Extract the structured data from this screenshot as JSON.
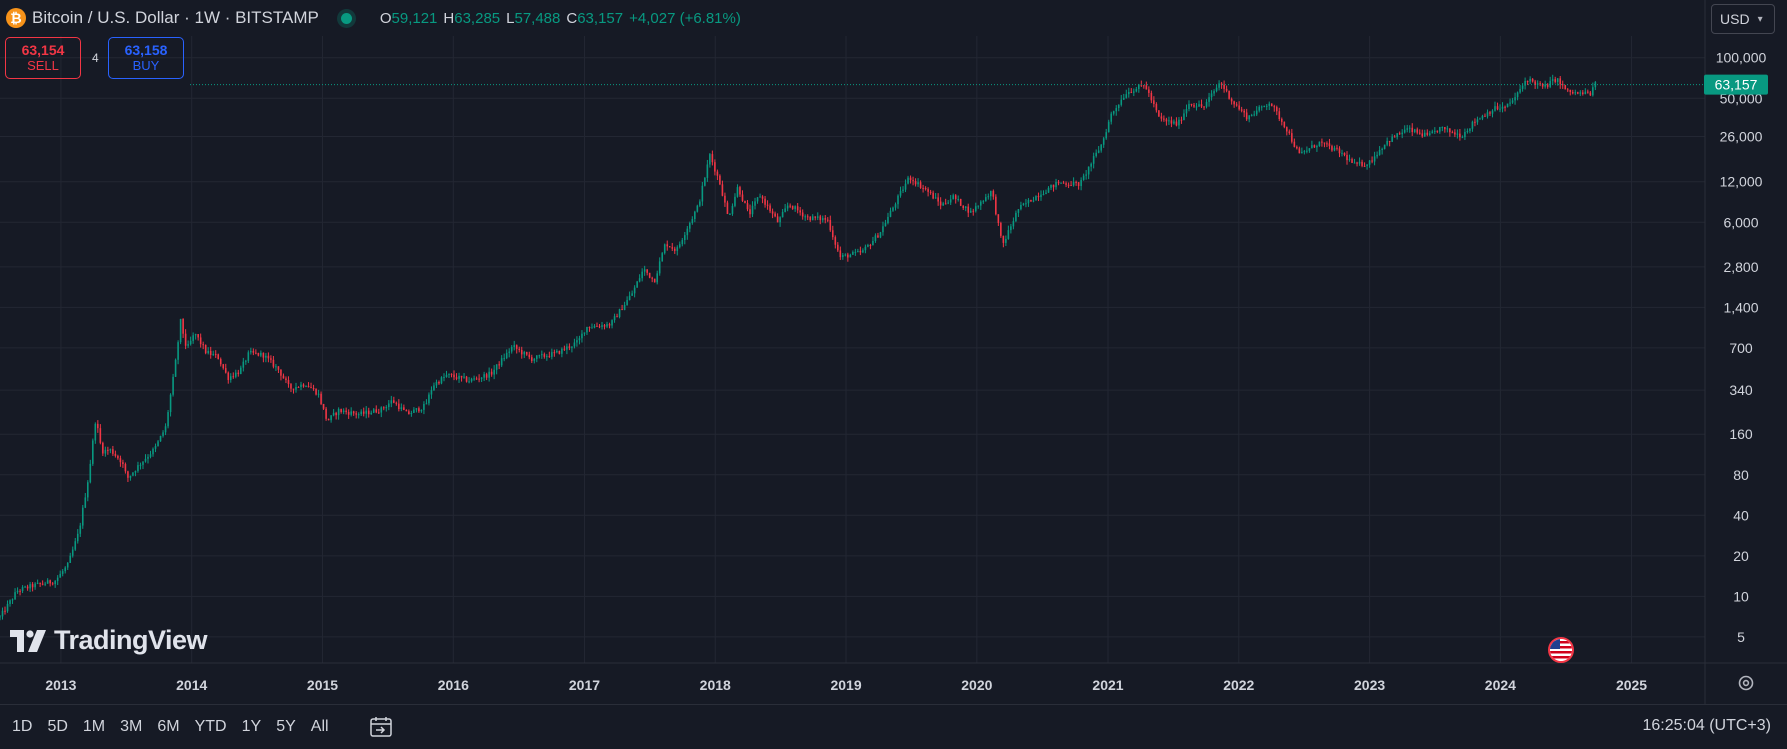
{
  "header": {
    "symbol_title": "Bitcoin / U.S. Dollar · 1W · BITSTAMP",
    "logo_glyph": "₿",
    "ohlc": {
      "o_label": "O",
      "o_value": "59,121",
      "h_label": "H",
      "h_value": "63,285",
      "l_label": "L",
      "l_value": "57,488",
      "c_label": "C",
      "c_value": "63,157",
      "change": "+4,027 (+6.81%)"
    }
  },
  "trade": {
    "sell_price": "63,154",
    "sell_label": "SELL",
    "spread": "4",
    "buy_price": "63,158",
    "buy_label": "BUY"
  },
  "currency": {
    "value": "USD"
  },
  "watermark": {
    "text": "TradingView"
  },
  "bottom_bar": {
    "ranges": [
      "1D",
      "5D",
      "1M",
      "3M",
      "6M",
      "YTD",
      "1Y",
      "5Y",
      "All"
    ],
    "clock": "16:25:04 (UTC+3)"
  },
  "colors": {
    "background": "#161a25",
    "grid": "#232733",
    "up": "#089981",
    "down": "#f23645",
    "text": "#d1d4dc",
    "price_tag": "#089981"
  },
  "icons": {
    "logo": "bitcoin-icon",
    "calendar": "calendar-goto-icon",
    "settings": "gear-icon",
    "badge": "us-flag-icon"
  },
  "chart_data": {
    "type": "candlestick",
    "scale": "log",
    "grid": true,
    "ylim": [
      3.2,
      145000
    ],
    "y_ticks": [
      5,
      10,
      20,
      40,
      80,
      160,
      340,
      700,
      1400,
      2800,
      6000,
      12000,
      26000,
      50000,
      100000
    ],
    "y_tick_labels": [
      "5",
      "10",
      "20",
      "40",
      "80",
      "160",
      "340",
      "700",
      "1,400",
      "2,800",
      "6,000",
      "12,000",
      "26,000",
      "50,000",
      "100,000"
    ],
    "x_ticks": [
      "2013",
      "2014",
      "2015",
      "2016",
      "2017",
      "2018",
      "2019",
      "2020",
      "2021",
      "2022",
      "2023",
      "2024",
      "2025"
    ],
    "xlim": [
      "2012-07-15",
      "2025-07-25"
    ],
    "last_price": 63157,
    "last_price_label": "63,157",
    "series": [
      {
        "x": "2012-07-15",
        "close": 7
      },
      {
        "x": "2012-09-01",
        "close": 11
      },
      {
        "x": "2012-10-15",
        "close": 12
      },
      {
        "x": "2012-12-15",
        "close": 13
      },
      {
        "x": "2013-01-20",
        "close": 17
      },
      {
        "x": "2013-02-20",
        "close": 30
      },
      {
        "x": "2013-03-20",
        "close": 80
      },
      {
        "x": "2013-04-08",
        "close": 210
      },
      {
        "x": "2013-04-25",
        "close": 120
      },
      {
        "x": "2013-05-20",
        "close": 122
      },
      {
        "x": "2013-06-20",
        "close": 100
      },
      {
        "x": "2013-07-05",
        "close": 75
      },
      {
        "x": "2013-08-15",
        "close": 100
      },
      {
        "x": "2013-09-20",
        "close": 125
      },
      {
        "x": "2013-10-20",
        "close": 180
      },
      {
        "x": "2013-11-15",
        "close": 500
      },
      {
        "x": "2013-12-01",
        "close": 1100
      },
      {
        "x": "2013-12-18",
        "close": 680
      },
      {
        "x": "2014-01-10",
        "close": 900
      },
      {
        "x": "2014-02-10",
        "close": 650
      },
      {
        "x": "2014-03-15",
        "close": 600
      },
      {
        "x": "2014-04-12",
        "close": 420
      },
      {
        "x": "2014-05-15",
        "close": 470
      },
      {
        "x": "2014-06-10",
        "close": 640
      },
      {
        "x": "2014-07-20",
        "close": 620
      },
      {
        "x": "2014-09-01",
        "close": 480
      },
      {
        "x": "2014-10-01",
        "close": 350
      },
      {
        "x": "2014-11-15",
        "close": 380
      },
      {
        "x": "2014-12-20",
        "close": 320
      },
      {
        "x": "2015-01-14",
        "close": 200
      },
      {
        "x": "2015-02-15",
        "close": 240
      },
      {
        "x": "2015-04-15",
        "close": 225
      },
      {
        "x": "2015-06-15",
        "close": 245
      },
      {
        "x": "2015-07-15",
        "close": 285
      },
      {
        "x": "2015-08-25",
        "close": 225
      },
      {
        "x": "2015-10-15",
        "close": 260
      },
      {
        "x": "2015-11-05",
        "close": 370
      },
      {
        "x": "2015-12-15",
        "close": 440
      },
      {
        "x": "2016-02-15",
        "close": 400
      },
      {
        "x": "2016-04-15",
        "close": 450
      },
      {
        "x": "2016-06-15",
        "close": 720
      },
      {
        "x": "2016-08-05",
        "close": 580
      },
      {
        "x": "2016-10-15",
        "close": 640
      },
      {
        "x": "2016-12-15",
        "close": 780
      },
      {
        "x": "2017-01-05",
        "close": 1000
      },
      {
        "x": "2017-03-15",
        "close": 1050
      },
      {
        "x": "2017-05-15",
        "close": 1800
      },
      {
        "x": "2017-06-15",
        "close": 2700
      },
      {
        "x": "2017-07-15",
        "close": 2200
      },
      {
        "x": "2017-08-15",
        "close": 4200
      },
      {
        "x": "2017-09-15",
        "close": 3700
      },
      {
        "x": "2017-10-15",
        "close": 5500
      },
      {
        "x": "2017-11-15",
        "close": 8000
      },
      {
        "x": "2017-12-17",
        "close": 19000
      },
      {
        "x": "2018-01-15",
        "close": 11500
      },
      {
        "x": "2018-02-06",
        "close": 6500
      },
      {
        "x": "2018-03-05",
        "close": 11000
      },
      {
        "x": "2018-04-05",
        "close": 6800
      },
      {
        "x": "2018-05-05",
        "close": 9600
      },
      {
        "x": "2018-06-25",
        "close": 6000
      },
      {
        "x": "2018-07-25",
        "close": 8200
      },
      {
        "x": "2018-09-15",
        "close": 6500
      },
      {
        "x": "2018-11-10",
        "close": 6300
      },
      {
        "x": "2018-12-15",
        "close": 3300
      },
      {
        "x": "2019-02-15",
        "close": 3600
      },
      {
        "x": "2019-04-05",
        "close": 5000
      },
      {
        "x": "2019-05-15",
        "close": 8000
      },
      {
        "x": "2019-06-26",
        "close": 13000
      },
      {
        "x": "2019-08-15",
        "close": 10300
      },
      {
        "x": "2019-09-25",
        "close": 8000
      },
      {
        "x": "2019-10-26",
        "close": 9300
      },
      {
        "x": "2019-12-15",
        "close": 7100
      },
      {
        "x": "2020-02-12",
        "close": 10300
      },
      {
        "x": "2020-03-12",
        "close": 4000
      },
      {
        "x": "2020-04-25",
        "close": 7500
      },
      {
        "x": "2020-06-15",
        "close": 9400
      },
      {
        "x": "2020-08-15",
        "close": 11800
      },
      {
        "x": "2020-10-15",
        "close": 11500
      },
      {
        "x": "2020-11-15",
        "close": 16500
      },
      {
        "x": "2020-12-15",
        "close": 23000
      },
      {
        "x": "2021-01-10",
        "close": 38000
      },
      {
        "x": "2021-02-20",
        "close": 55000
      },
      {
        "x": "2021-04-14",
        "close": 63000
      },
      {
        "x": "2021-05-25",
        "close": 35000
      },
      {
        "x": "2021-07-15",
        "close": 32000
      },
      {
        "x": "2021-08-15",
        "close": 46000
      },
      {
        "x": "2021-09-25",
        "close": 43000
      },
      {
        "x": "2021-11-10",
        "close": 66000
      },
      {
        "x": "2021-12-15",
        "close": 47000
      },
      {
        "x": "2022-01-25",
        "close": 36000
      },
      {
        "x": "2022-03-28",
        "close": 47000
      },
      {
        "x": "2022-05-15",
        "close": 29500
      },
      {
        "x": "2022-06-18",
        "close": 19000
      },
      {
        "x": "2022-08-15",
        "close": 23500
      },
      {
        "x": "2022-10-15",
        "close": 19500
      },
      {
        "x": "2022-11-20",
        "close": 16000
      },
      {
        "x": "2022-12-30",
        "close": 16500
      },
      {
        "x": "2023-02-15",
        "close": 23500
      },
      {
        "x": "2023-04-15",
        "close": 29500
      },
      {
        "x": "2023-06-15",
        "close": 26000
      },
      {
        "x": "2023-07-15",
        "close": 30000
      },
      {
        "x": "2023-09-15",
        "close": 26500
      },
      {
        "x": "2023-10-25",
        "close": 34500
      },
      {
        "x": "2023-12-15",
        "close": 42000
      },
      {
        "x": "2024-01-15",
        "close": 42500
      },
      {
        "x": "2024-02-15",
        "close": 52000
      },
      {
        "x": "2024-03-14",
        "close": 70000
      },
      {
        "x": "2024-05-01",
        "close": 60000
      },
      {
        "x": "2024-06-05",
        "close": 70000
      },
      {
        "x": "2024-07-05",
        "close": 56000
      },
      {
        "x": "2024-08-05",
        "close": 54000
      },
      {
        "x": "2024-09-08",
        "close": 54500
      },
      {
        "x": "2024-09-22",
        "close": 63157
      }
    ]
  }
}
